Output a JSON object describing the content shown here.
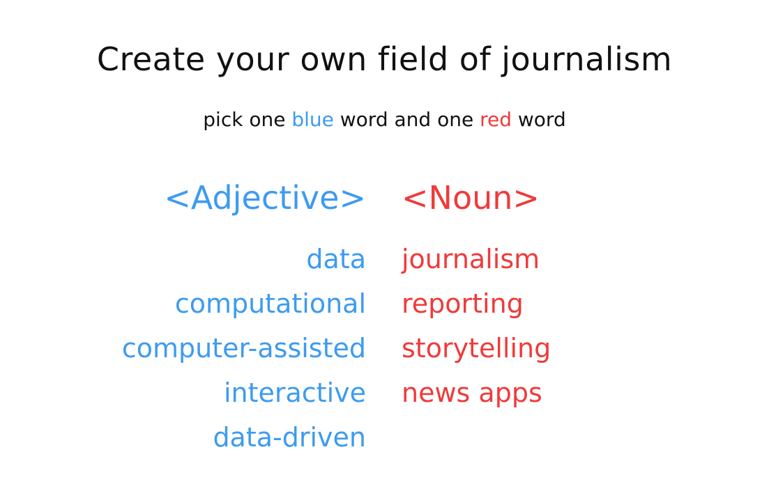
{
  "title": "Create your own field of journalism",
  "subtitle": {
    "part1": "pick one ",
    "blue_word": "blue",
    "part2": " word and one ",
    "red_word": "red",
    "part3": " word"
  },
  "adjective_column": {
    "header": "<Adjective>",
    "items": [
      "data",
      "computational",
      "computer-assisted",
      "interactive",
      "data-driven"
    ]
  },
  "noun_column": {
    "header": "<Noun>",
    "items": [
      "journalism",
      "reporting",
      "storytelling",
      "news apps"
    ]
  },
  "colors": {
    "blue": "#3d9bf0",
    "red": "#f03a3a",
    "text": "#111111"
  }
}
